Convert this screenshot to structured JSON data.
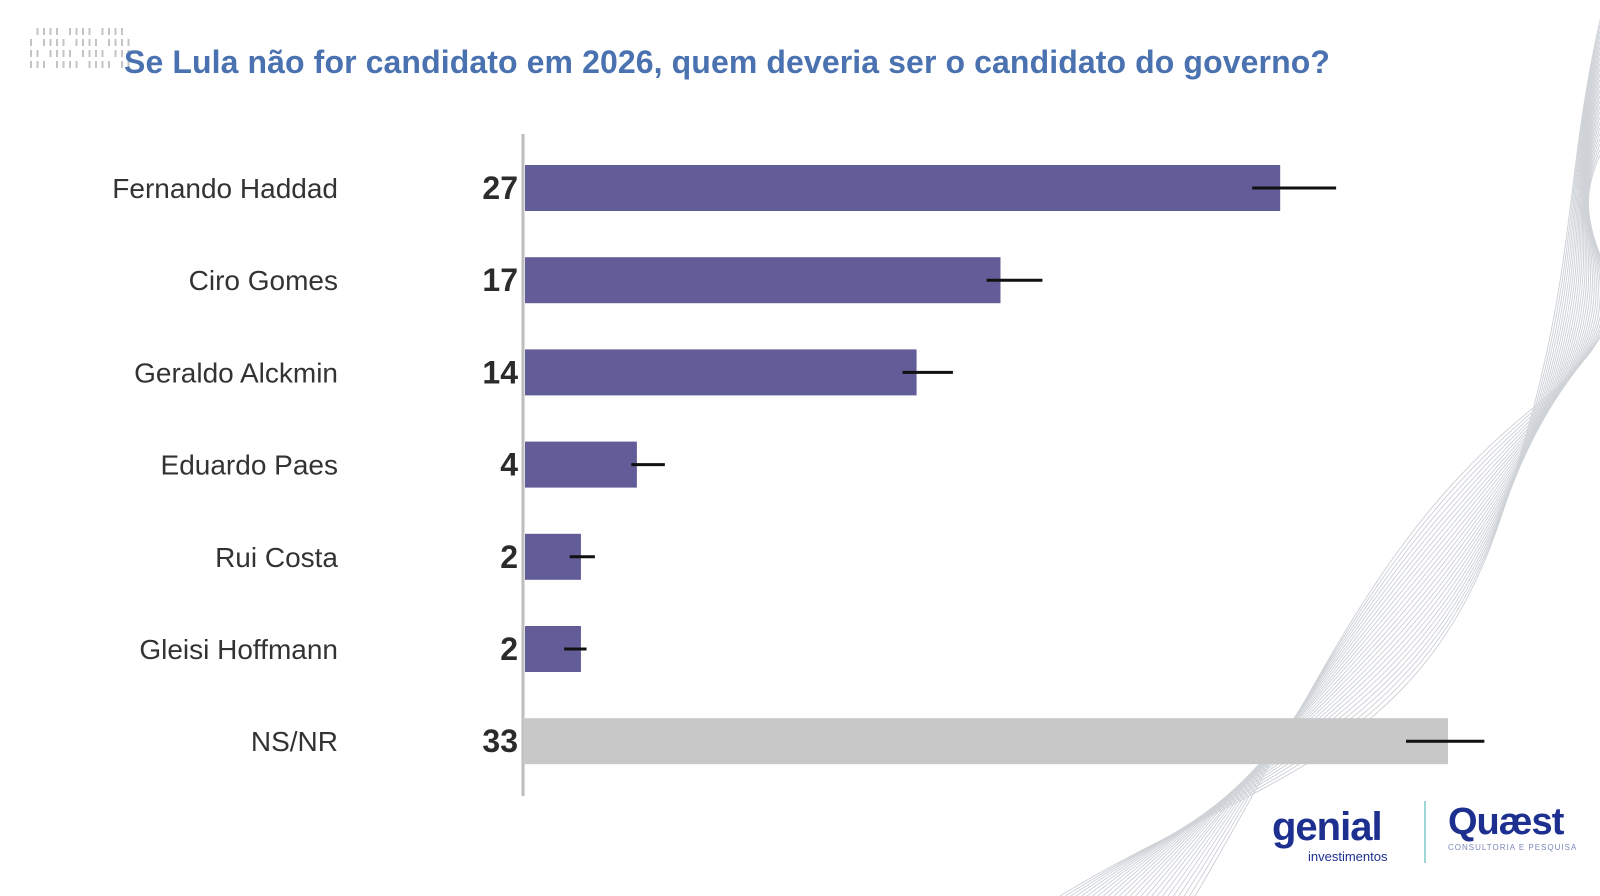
{
  "chart_data": {
    "type": "bar",
    "orientation": "horizontal",
    "title": "Se Lula não for candidato em 2026, quem deveria ser o candidato do governo?",
    "categories": [
      "Fernando Haddad",
      "Ciro Gomes",
      "Geraldo Alckmin",
      "Eduardo Paes",
      "Rui Costa",
      "Gleisi Hoffmann",
      "NS/NR"
    ],
    "values": [
      27,
      17,
      14,
      4,
      2,
      2,
      33
    ],
    "error_range": [
      [
        26,
        29
      ],
      [
        16.5,
        18.5
      ],
      [
        13.5,
        15.3
      ],
      [
        3.8,
        5
      ],
      [
        1.6,
        2.5
      ],
      [
        1.4,
        2.2
      ],
      [
        31.5,
        34.3
      ]
    ],
    "xlim": [
      0,
      33
    ],
    "colors": {
      "bar": "#625c98",
      "bar_undecided": "#c8c8c8",
      "error_bar": "#111111",
      "title": "#4b72b0"
    },
    "grid": false,
    "legend": "none"
  },
  "logos": {
    "genial": "genial",
    "genial_sub": "investimentos",
    "quaest": "Quæst",
    "quaest_sub": "CONSULTORIA E PESQUISA"
  }
}
